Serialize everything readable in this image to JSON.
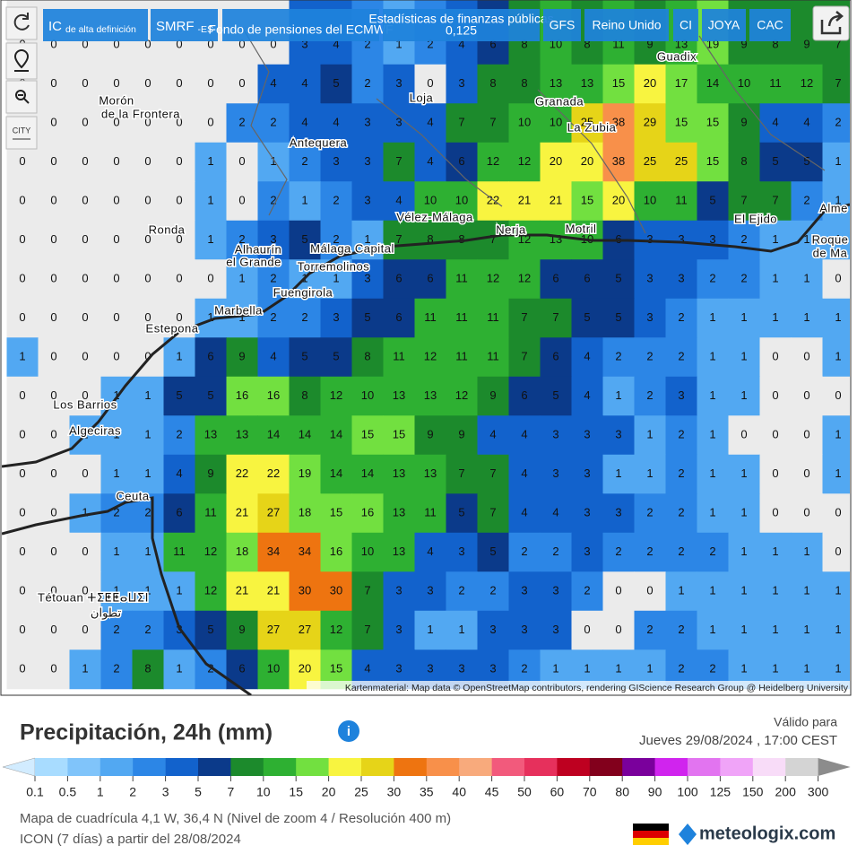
{
  "toolbar": {
    "buttons": [
      {
        "main": "IC",
        "sub": "de alta definición"
      },
      {
        "main": "SMRF",
        "sub": "-ES"
      },
      {
        "main": "Fondo de pensiones del ECMWF"
      },
      {
        "main": "Estadísticas de finanzas públicas",
        "sub": "0,125"
      },
      {
        "main": "GFS"
      },
      {
        "main": "Reino Unido"
      },
      {
        "main": "CI"
      },
      {
        "main": "JOYA"
      },
      {
        "main": "CAC"
      }
    ],
    "city_button": "CITY"
  },
  "map": {
    "grid": {
      "rows": [
        [
          0,
          0,
          0,
          0,
          0,
          0,
          0,
          0,
          0,
          3,
          4,
          2,
          1,
          2,
          4,
          6,
          8,
          10,
          8,
          11,
          9,
          13,
          19,
          9,
          8,
          9,
          7
        ],
        [
          0,
          0,
          0,
          0,
          0,
          0,
          0,
          0,
          4,
          4,
          5,
          2,
          3,
          0,
          3,
          8,
          8,
          13,
          13,
          15,
          20,
          17,
          14,
          10,
          11,
          12,
          7
        ],
        [
          0,
          0,
          0,
          0,
          0,
          0,
          0,
          2,
          2,
          4,
          4,
          3,
          3,
          4,
          7,
          7,
          10,
          10,
          25,
          38,
          29,
          15,
          15,
          9,
          4,
          4,
          2
        ],
        [
          0,
          0,
          0,
          0,
          0,
          0,
          1,
          0,
          1,
          2,
          3,
          3,
          7,
          4,
          6,
          12,
          12,
          20,
          20,
          38,
          25,
          25,
          15,
          8,
          5,
          5,
          1
        ],
        [
          0,
          0,
          0,
          0,
          0,
          0,
          1,
          0,
          2,
          1,
          2,
          3,
          4,
          10,
          10,
          22,
          21,
          21,
          15,
          20,
          10,
          11,
          5,
          7,
          7,
          2,
          1
        ],
        [
          0,
          0,
          0,
          0,
          0,
          0,
          1,
          2,
          3,
          5,
          2,
          1,
          7,
          8,
          8,
          7,
          12,
          13,
          10,
          6,
          3,
          3,
          3,
          2,
          1,
          1,
          1
        ],
        [
          0,
          0,
          0,
          0,
          0,
          0,
          0,
          1,
          2,
          1,
          1,
          3,
          6,
          6,
          11,
          12,
          12,
          6,
          6,
          5,
          3,
          3,
          2,
          2,
          1,
          1,
          0
        ],
        [
          0,
          0,
          0,
          0,
          0,
          0,
          1,
          1,
          2,
          2,
          3,
          5,
          6,
          11,
          11,
          11,
          7,
          7,
          5,
          5,
          3,
          2,
          1,
          1,
          1,
          1,
          1
        ],
        [
          1,
          0,
          0,
          0,
          0,
          1,
          6,
          9,
          4,
          5,
          5,
          8,
          11,
          12,
          11,
          11,
          7,
          6,
          4,
          2,
          2,
          2,
          1,
          1,
          0,
          0,
          1
        ],
        [
          0,
          0,
          0,
          1,
          1,
          5,
          5,
          16,
          16,
          8,
          12,
          10,
          13,
          13,
          12,
          9,
          6,
          5,
          4,
          1,
          2,
          3,
          1,
          1,
          0,
          0,
          0
        ],
        [
          0,
          0,
          1,
          1,
          1,
          2,
          13,
          13,
          14,
          14,
          14,
          15,
          15,
          9,
          9,
          4,
          4,
          3,
          3,
          3,
          1,
          2,
          1,
          0,
          0,
          0,
          1
        ],
        [
          0,
          0,
          0,
          1,
          1,
          4,
          9,
          22,
          22,
          19,
          14,
          14,
          13,
          13,
          7,
          7,
          4,
          3,
          3,
          1,
          1,
          2,
          1,
          1,
          0,
          0,
          1
        ],
        [
          0,
          0,
          1,
          2,
          2,
          6,
          11,
          21,
          27,
          18,
          15,
          16,
          13,
          11,
          5,
          7,
          4,
          4,
          3,
          3,
          2,
          2,
          1,
          1,
          0,
          0,
          0
        ],
        [
          0,
          0,
          0,
          1,
          1,
          11,
          12,
          18,
          34,
          34,
          16,
          10,
          13,
          4,
          3,
          5,
          2,
          2,
          3,
          2,
          2,
          2,
          2,
          1,
          1,
          1,
          0
        ],
        [
          0,
          0,
          0,
          1,
          1,
          1,
          12,
          21,
          21,
          30,
          30,
          7,
          3,
          3,
          2,
          2,
          3,
          3,
          2,
          0,
          0,
          1,
          1,
          1,
          1,
          1,
          1
        ],
        [
          0,
          0,
          0,
          2,
          2,
          3,
          5,
          9,
          27,
          27,
          12,
          7,
          3,
          1,
          1,
          3,
          3,
          3,
          0,
          0,
          2,
          2,
          1,
          1,
          1,
          1,
          1
        ],
        [
          0,
          0,
          1,
          2,
          8,
          1,
          2,
          6,
          10,
          20,
          15,
          4,
          3,
          3,
          3,
          3,
          2,
          1,
          1,
          1,
          1,
          2,
          2,
          1,
          1,
          1,
          1
        ]
      ]
    },
    "places": [
      "Guadix",
      "Loja",
      "Granada",
      "La Zubia",
      "Morón",
      "de la Frontera",
      "Antequera",
      "Vélez-Málaga",
      "El Ejido",
      "Alme",
      "Nerja",
      "Motril",
      "Roque",
      "de Ma",
      "Ronda",
      "Alhaurín",
      "el Grande",
      "Málaga Capital",
      "Torremolinos",
      "Fuengirola",
      "Marbella",
      "Estepona",
      "Los Barrios",
      "Algeciras",
      "Ceuta",
      "Tétouan ⵜⵉⵟⵟⴰⵡⵉⵏ",
      "تطوان"
    ],
    "attribution": "Kartenmaterial: Map data © OpenStreetMap contributors, rendering GIScience Research Group @ Heidelberg University"
  },
  "legend": {
    "title": "Precipitación, 24h (mm)",
    "ticks": [
      0.1,
      0.5,
      1,
      2,
      3,
      5,
      7,
      10,
      15,
      20,
      25,
      30,
      35,
      40,
      45,
      50,
      60,
      70,
      80,
      90,
      100,
      125,
      150,
      200,
      300
    ],
    "colors": [
      "#a8dcff",
      "#80c4fa",
      "#52a8f2",
      "#2c86e6",
      "#1262cc",
      "#0b3a8a",
      "#1c8a2c",
      "#2eb032",
      "#72e040",
      "#f8f440",
      "#e6d418",
      "#ee7410",
      "#f8904a",
      "#f8aa7c",
      "#f25a7c",
      "#e6305c",
      "#be0020",
      "#82001c",
      "#7a009c",
      "#d024ee",
      "#e274f0",
      "#f0a4f8",
      "#f8dcf8",
      "#d4d4d4"
    ],
    "under_color": "#d2ecff",
    "over_color": "#8c8c8c"
  },
  "validity": {
    "label": "Válido para",
    "time": "Jueves 29/08/2024 , 17:00 CEST"
  },
  "footer": {
    "grid_info": "Mapa de cuadrícula 4,1 W, 36,4 N (Nivel de zoom 4 / Resolución 400 m)",
    "model_info": "ICON (7 días) a partir del 28/08/2024",
    "brand": "meteologix.com"
  }
}
